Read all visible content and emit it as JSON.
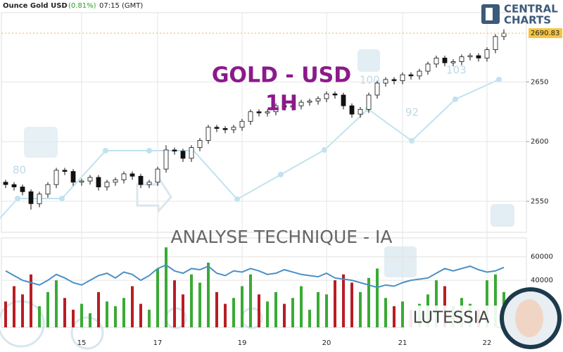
{
  "header": {
    "instrument": "Ounce Gold USD",
    "change": "(0.81%)",
    "time": "07:15 (GMT)"
  },
  "logo": {
    "line1": "CENTRAL",
    "line2": "CHARTS"
  },
  "overlay": {
    "title": "GOLD - USD",
    "timeframe": "1H",
    "analysis": "ANALYSE TECHNIQUE - IA",
    "brand": "LUTESSIA",
    "watermark_labels": [
      "80",
      "92",
      "103",
      "100"
    ]
  },
  "chart_data": [
    {
      "type": "candlestick",
      "last_price": 2690.83,
      "last_price_label": "2690.83",
      "open": [
        2566,
        2564,
        2562,
        2558,
        2548,
        2556,
        2564,
        2576,
        2575,
        2566,
        2567,
        2570,
        2562,
        2566,
        2568,
        2573,
        2571,
        2564,
        2566,
        2577,
        2593,
        2592,
        2586,
        2595,
        2601,
        2612,
        2611,
        2610,
        2612,
        2617,
        2625,
        2624,
        2625,
        2630,
        2629,
        2630,
        2633,
        2634,
        2636,
        2640,
        2639,
        2630,
        2623,
        2627,
        2639,
        2649,
        2652,
        2651,
        2656,
        2655,
        2659,
        2665,
        2670,
        2666,
        2667,
        2671,
        2672,
        2670,
        2677,
        2688
      ],
      "high": [
        2568,
        2566,
        2564,
        2560,
        2558,
        2566,
        2578,
        2578,
        2577,
        2569,
        2572,
        2572,
        2568,
        2570,
        2575,
        2575,
        2573,
        2568,
        2579,
        2597,
        2595,
        2594,
        2597,
        2603,
        2614,
        2614,
        2613,
        2614,
        2619,
        2627,
        2627,
        2627,
        2632,
        2632,
        2632,
        2635,
        2636,
        2638,
        2642,
        2642,
        2641,
        2632,
        2629,
        2641,
        2651,
        2654,
        2654,
        2658,
        2658,
        2661,
        2667,
        2672,
        2672,
        2669,
        2673,
        2674,
        2674,
        2679,
        2690,
        2694
      ],
      "low": [
        2561,
        2559,
        2555,
        2543,
        2545,
        2553,
        2561,
        2572,
        2563,
        2563,
        2564,
        2559,
        2559,
        2563,
        2565,
        2568,
        2561,
        2561,
        2563,
        2574,
        2589,
        2583,
        2583,
        2592,
        2598,
        2608,
        2607,
        2607,
        2609,
        2614,
        2621,
        2621,
        2622,
        2626,
        2626,
        2627,
        2630,
        2631,
        2633,
        2636,
        2627,
        2620,
        2620,
        2624,
        2636,
        2646,
        2648,
        2648,
        2652,
        2652,
        2656,
        2662,
        2663,
        2663,
        2664,
        2668,
        2667,
        2667,
        2674,
        2685
      ],
      "close": [
        2564,
        2562,
        2558,
        2548,
        2556,
        2564,
        2576,
        2575,
        2566,
        2567,
        2570,
        2562,
        2566,
        2568,
        2573,
        2571,
        2564,
        2566,
        2577,
        2593,
        2592,
        2586,
        2595,
        2601,
        2612,
        2611,
        2610,
        2612,
        2617,
        2625,
        2624,
        2625,
        2630,
        2629,
        2630,
        2633,
        2634,
        2636,
        2640,
        2639,
        2630,
        2623,
        2627,
        2639,
        2649,
        2652,
        2651,
        2656,
        2655,
        2659,
        2665,
        2670,
        2666,
        2667,
        2671,
        2672,
        2670,
        2677,
        2688,
        2690.83
      ],
      "up_color": "#ffffff",
      "down_color": "#111111",
      "ylim": [
        2524,
        2708
      ],
      "yticks": [
        2550,
        2600,
        2650
      ],
      "xticks": [
        {
          "value": 9,
          "label": "15"
        },
        {
          "value": 18,
          "label": "17"
        },
        {
          "value": 28,
          "label": "19"
        },
        {
          "value": 38,
          "label": "20"
        },
        {
          "value": 47,
          "label": "21"
        },
        {
          "value": 57,
          "label": "22"
        }
      ]
    },
    {
      "type": "volume",
      "values": [
        22000,
        35000,
        28000,
        45000,
        18000,
        30000,
        40000,
        25000,
        15000,
        20000,
        12000,
        30000,
        22000,
        18000,
        25000,
        35000,
        20000,
        15000,
        50000,
        68000,
        40000,
        28000,
        45000,
        38000,
        55000,
        30000,
        20000,
        25000,
        35000,
        45000,
        28000,
        22000,
        30000,
        20000,
        25000,
        35000,
        15000,
        30000,
        28000,
        40000,
        45000,
        38000,
        30000,
        42000,
        50000,
        25000,
        18000,
        22000,
        15000,
        20000,
        28000,
        40000,
        35000,
        18000,
        25000,
        20000,
        15000,
        40000,
        45000,
        30000
      ],
      "line": [
        48000,
        44000,
        40000,
        38000,
        36000,
        40000,
        45000,
        42000,
        38000,
        36000,
        40000,
        44000,
        46000,
        42000,
        47000,
        45000,
        40000,
        44000,
        50000,
        53000,
        48000,
        46000,
        50000,
        49000,
        52000,
        46000,
        44000,
        48000,
        47000,
        50000,
        48000,
        45000,
        46000,
        49000,
        47000,
        45000,
        44000,
        43000,
        46000,
        42000,
        41000,
        40000,
        38000,
        36000,
        34000,
        36000,
        35000,
        38000,
        40000,
        41000,
        42000,
        46000,
        50000,
        48000,
        50000,
        52000,
        49000,
        47000,
        48000,
        51000
      ],
      "up_color": "#3aaa35",
      "down_color": "#b81d24",
      "line_color": "#4a90c8",
      "ylim": [
        0,
        76000
      ],
      "yticks": [
        40000,
        60000
      ]
    }
  ]
}
